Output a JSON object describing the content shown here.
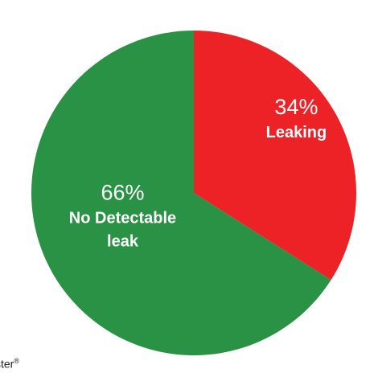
{
  "chart_data": {
    "type": "pie",
    "start": "12 o'clock",
    "direction": "clockwise",
    "slices": [
      {
        "label_lines": [
          "Leaking"
        ],
        "value": 34,
        "value_label": "34%",
        "color": "#ec2227"
      },
      {
        "label_lines": [
          "No Detectable",
          "leak"
        ],
        "value": 66,
        "value_label": "66%",
        "color": "#2a9245"
      }
    ]
  },
  "footer": {
    "text": "ster",
    "superscript": "®"
  }
}
